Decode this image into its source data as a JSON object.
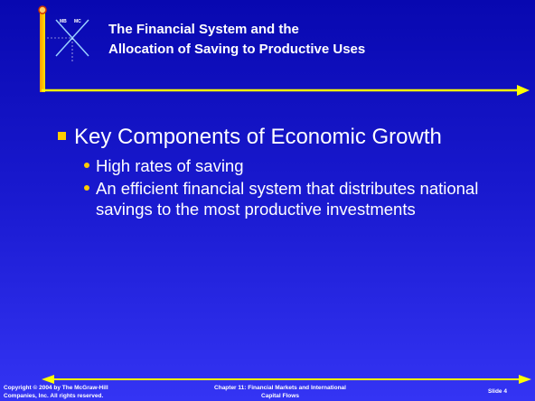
{
  "header": {
    "title_lines": [
      "The Financial System and the",
      "Allocation of Saving to Productive Uses"
    ],
    "logo_labels": [
      "MB",
      "MC"
    ]
  },
  "body": {
    "heading": "Key Components of Economic Growth",
    "bullets": [
      "High rates of saving",
      "An efficient financial system that distributes national savings to the most productive investments"
    ]
  },
  "footer": {
    "copyright": [
      "Copyright © 2004 by The McGraw-Hill",
      "Companies, Inc.  All rights reserved."
    ],
    "chapter": [
      "Chapter 11: Financial Markets and International",
      "Capital Flows"
    ],
    "slide": "Slide 4"
  }
}
